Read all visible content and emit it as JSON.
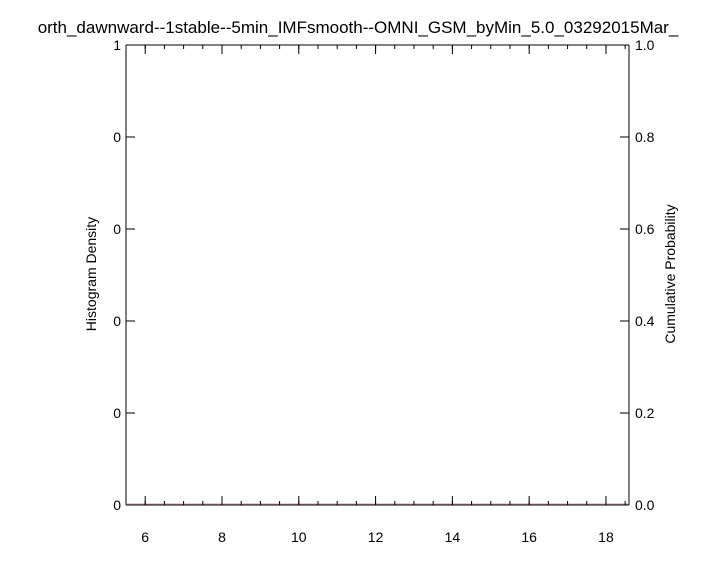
{
  "chart_data": {
    "type": "bar",
    "title": "orth_dawnward--1stable--5min_IMFsmooth--OMNI_GSM_byMin_5.0_03292015Mar_",
    "xlabel": "",
    "ylabel": "Histogram Density",
    "y2label": "Cumulative Probability",
    "xlim": [
      5.5,
      18.6
    ],
    "x_major_ticks": [
      "6",
      "8",
      "10",
      "12",
      "14",
      "16",
      "18"
    ],
    "x_minor_step": 0.5,
    "ylim": [
      0,
      1
    ],
    "y_tick_labels": [
      "0",
      "0",
      "0",
      "0",
      "0",
      "1"
    ],
    "y2lim": [
      0,
      1
    ],
    "y2_tick_labels": [
      "0.0",
      "0.2",
      "0.4",
      "0.6",
      "0.8",
      "1.0"
    ],
    "grid": false,
    "series": [
      {
        "values": []
      }
    ],
    "colors": {
      "axis": "#000000",
      "baseline": "#d9a0a0"
    }
  }
}
